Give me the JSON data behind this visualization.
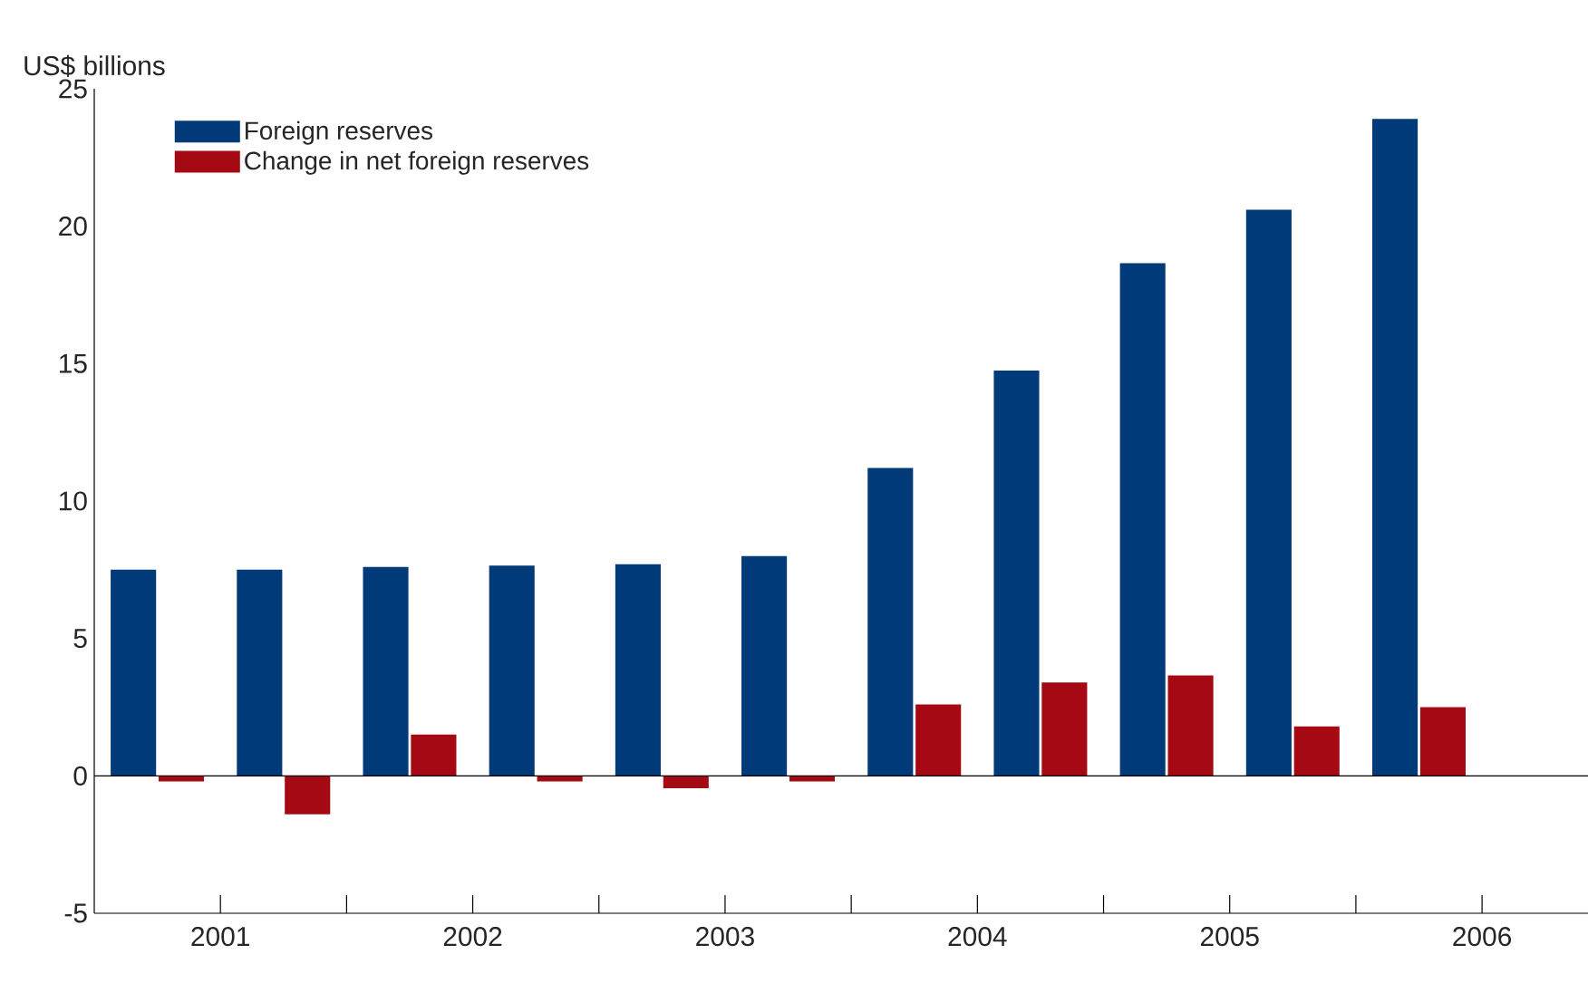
{
  "chart_data": {
    "type": "bar",
    "ylabel": "US$ billions",
    "x": [
      2000.75,
      2001.25,
      2001.75,
      2002.25,
      2002.75,
      2003.25,
      2003.75,
      2004.25,
      2004.75,
      2005.25,
      2005.75
    ],
    "series": [
      {
        "name": "Foreign reserves",
        "color": "#003a78",
        "values": [
          7.5,
          7.5,
          7.6,
          7.65,
          7.7,
          8.0,
          11.2,
          14.75,
          18.65,
          20.6,
          23.9
        ]
      },
      {
        "name": "Change in net foreign reserves",
        "color": "#a50a14",
        "values": [
          -0.2,
          -1.4,
          1.5,
          -0.2,
          -0.45,
          -0.2,
          2.6,
          3.4,
          3.65,
          1.8,
          2.5
        ]
      }
    ],
    "xlim": [
      2000.5,
      2006.42
    ],
    "xticks": [
      2001,
      {
        "value": 2001.5,
        "label": null
      },
      2002,
      {
        "value": 2002.5,
        "label": null
      },
      2003,
      {
        "value": 2003.5,
        "label": null
      },
      2004,
      {
        "value": 2004.5,
        "label": null
      },
      2005,
      {
        "value": 2005.5,
        "label": null
      },
      2006
    ],
    "ylim": [
      -5,
      25
    ],
    "yticks": [
      -5,
      0,
      5,
      10,
      15,
      20,
      25
    ],
    "ref_lines": [
      {
        "axis": "y",
        "value": 0
      }
    ],
    "legend": "top left",
    "grid": false
  }
}
